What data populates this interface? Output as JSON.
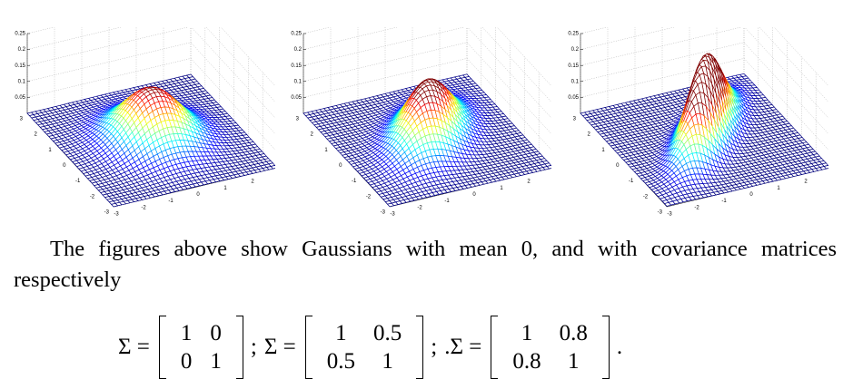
{
  "figures": [
    {
      "xlim": [
        -3,
        3
      ],
      "ylim": [
        -3,
        3
      ],
      "zlim": [
        0,
        0.25
      ],
      "xticks": [
        -3,
        -2,
        -1,
        0,
        1,
        2,
        3
      ],
      "yticks": [
        -3,
        -2,
        -1,
        0,
        1,
        2,
        3
      ],
      "zticks": [
        0.05,
        0.1,
        0.15,
        0.2,
        0.25
      ],
      "covariance_ref": 0
    },
    {
      "xlim": [
        -3,
        3
      ],
      "ylim": [
        -3,
        3
      ],
      "zlim": [
        0,
        0.25
      ],
      "xticks": [
        -3,
        -2,
        -1,
        0,
        1,
        2,
        3
      ],
      "yticks": [
        -3,
        -2,
        -1,
        0,
        1,
        2,
        3
      ],
      "zticks": [
        0.05,
        0.1,
        0.15,
        0.2,
        0.25
      ],
      "covariance_ref": 1
    },
    {
      "xlim": [
        -3,
        3
      ],
      "ylim": [
        -3,
        3
      ],
      "zlim": [
        0,
        0.25
      ],
      "xticks": [
        -3,
        -2,
        -1,
        0,
        1,
        2,
        3
      ],
      "yticks": [
        -3,
        -2,
        -1,
        0,
        1,
        2,
        3
      ],
      "zticks": [
        0.05,
        0.1,
        0.15,
        0.2,
        0.25
      ],
      "covariance_ref": 2
    }
  ],
  "paragraph": "The figures above show Gaussians with mean 0, and with covariance matrices respectively",
  "equations": [
    {
      "lhs": "Σ =",
      "matrix": [
        [
          1,
          0
        ],
        [
          0,
          1
        ]
      ],
      "after": ";"
    },
    {
      "lhs": "Σ =",
      "matrix": [
        [
          1,
          0.5
        ],
        [
          0.5,
          1
        ]
      ],
      "after": ";"
    },
    {
      "lhs": ".Σ =",
      "matrix": [
        [
          1,
          0.8
        ],
        [
          0.8,
          1
        ]
      ],
      "after": "."
    }
  ]
}
